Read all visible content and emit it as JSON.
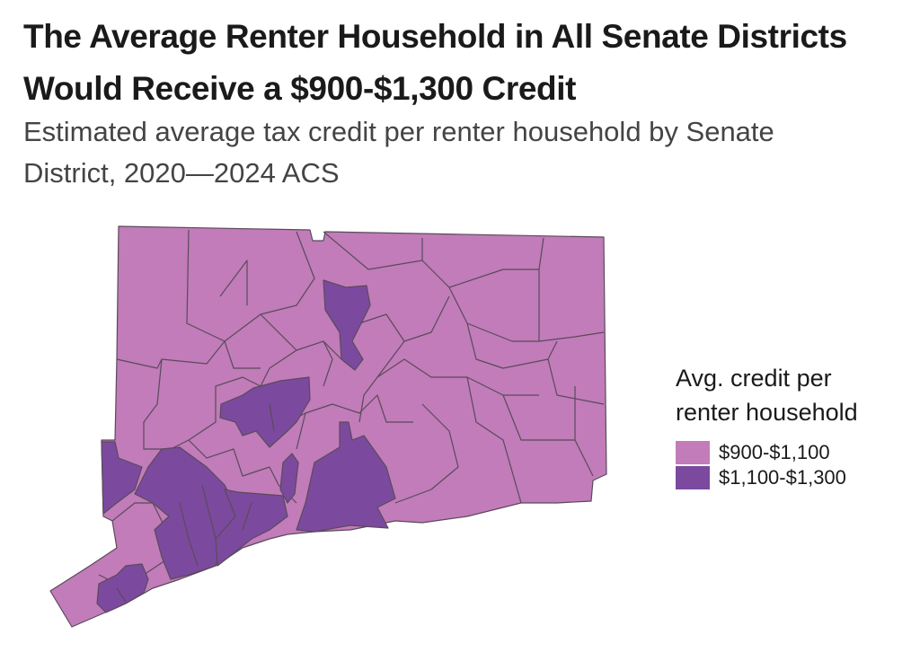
{
  "title": "The Average Renter Household in All Senate Districts Would Receive a $900-$1,300 Credit",
  "subtitle": "Estimated average tax credit per renter household by Senate District, 2020—2024 ACS",
  "legend": {
    "title": "Avg. credit per renter household",
    "items": [
      {
        "label": "$900-$1,100",
        "color": "#c17cb9"
      },
      {
        "label": "$1,100-$1,300",
        "color": "#7b4a9e"
      }
    ]
  },
  "map": {
    "region": "Connecticut Senate Districts",
    "colors": {
      "low": "#c17cb9",
      "high": "#7b4a9e",
      "border": "#5a4a5a"
    }
  }
}
